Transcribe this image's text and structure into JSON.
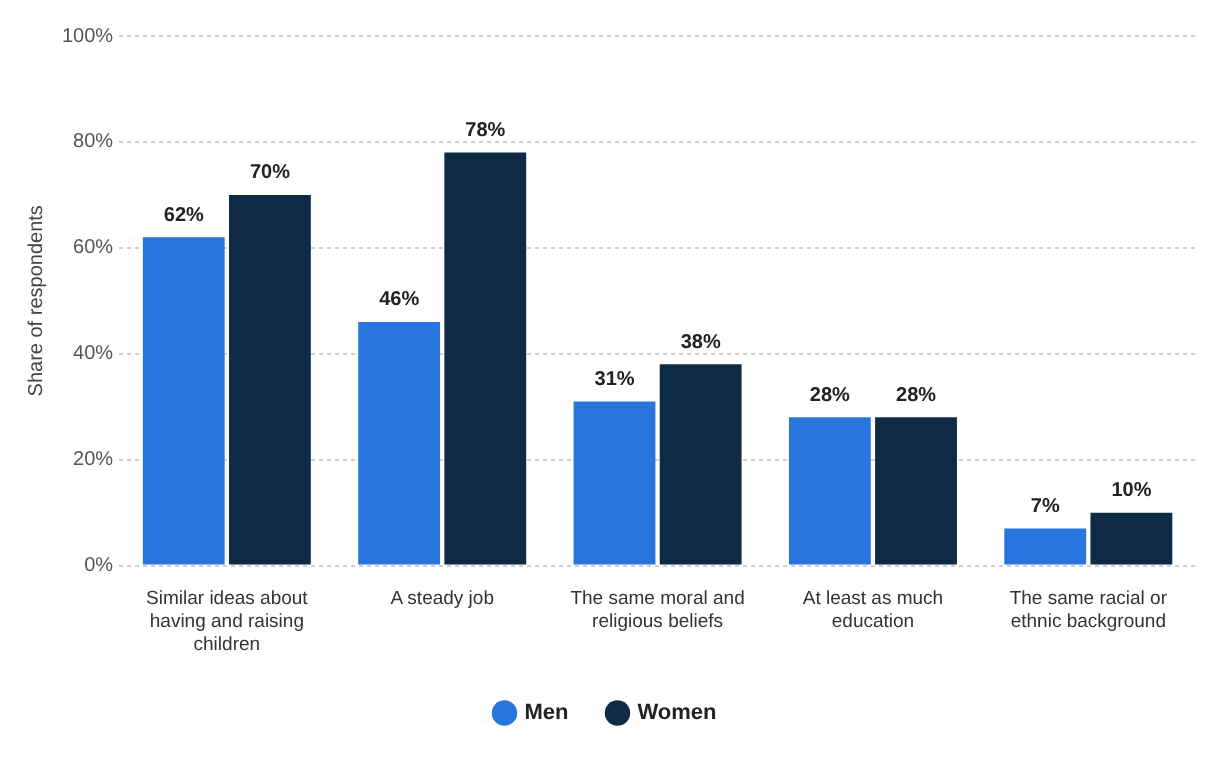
{
  "chart_data": {
    "type": "bar",
    "ylabel": "Share of respondents",
    "categories": [
      "Similar ideas about having and raising children",
      "A steady job",
      "The same moral and religious beliefs",
      "At least as much education",
      "The same racial or ethnic background"
    ],
    "series": [
      {
        "name": "Men",
        "color": "#2876dd",
        "values": [
          62,
          46,
          31,
          28,
          7
        ],
        "value_labels": [
          "62%",
          "46%",
          "31%",
          "28%",
          "7%"
        ]
      },
      {
        "name": "Women",
        "color": "#0f2a44",
        "values": [
          70,
          78,
          38,
          28,
          10
        ],
        "value_labels": [
          "70%",
          "78%",
          "38%",
          "28%",
          "10%"
        ]
      }
    ],
    "ylim": [
      0,
      100
    ],
    "yticks": [
      {
        "value": 0,
        "label": "0%"
      },
      {
        "value": 20,
        "label": "20%"
      },
      {
        "value": 40,
        "label": "40%"
      },
      {
        "value": 60,
        "label": "60%"
      },
      {
        "value": 80,
        "label": "80%"
      },
      {
        "value": 100,
        "label": "100%"
      }
    ],
    "grid": "y",
    "legend": "bottom"
  }
}
